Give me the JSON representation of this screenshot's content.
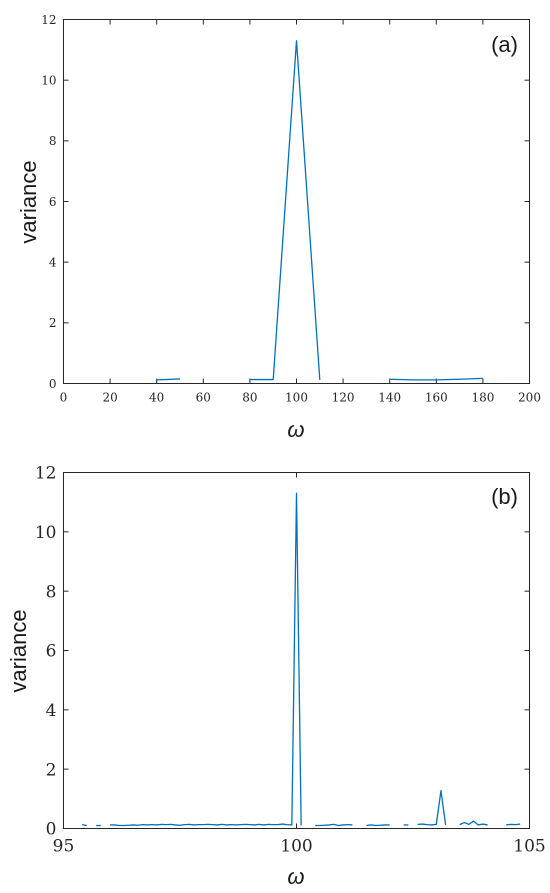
{
  "chart_data": [
    {
      "type": "line",
      "panel_label": "(a)",
      "xlabel": "ω",
      "ylabel": "variance",
      "xlim": [
        0,
        200
      ],
      "ylim": [
        0,
        12
      ],
      "xticks": [
        0,
        20,
        40,
        60,
        80,
        100,
        120,
        140,
        160,
        180,
        200
      ],
      "yticks": [
        0,
        2,
        4,
        6,
        8,
        10,
        12
      ],
      "grid": false,
      "color": "#0072bd",
      "segments": [
        {
          "x": [
            40,
            50
          ],
          "y": [
            0.12,
            0.15
          ]
        },
        {
          "x": [
            80,
            90,
            100,
            110
          ],
          "y": [
            0.13,
            0.13,
            11.3,
            0.12
          ]
        },
        {
          "x": [
            140,
            150,
            160,
            170,
            180
          ],
          "y": [
            0.14,
            0.12,
            0.12,
            0.14,
            0.17
          ]
        }
      ]
    },
    {
      "type": "line",
      "panel_label": "(b)",
      "xlabel": "ω",
      "ylabel": "variance",
      "xlim": [
        95,
        105
      ],
      "ylim": [
        0,
        12
      ],
      "xticks": [
        95,
        100,
        105
      ],
      "yticks": [
        0,
        2,
        4,
        6,
        8,
        10,
        12
      ],
      "grid": false,
      "color": "#0072bd",
      "segments": [
        {
          "x": [
            95.4,
            95.5
          ],
          "y": [
            0.13,
            0.1
          ]
        },
        {
          "x": [
            95.7,
            95.8
          ],
          "y": [
            0.1,
            0.1
          ]
        },
        {
          "x": [
            96.0,
            96.1,
            96.2,
            96.3,
            96.4,
            96.5,
            96.6,
            96.7,
            96.8,
            96.9,
            97.0,
            97.1,
            97.2,
            97.3,
            97.4,
            97.5,
            97.6,
            97.7,
            97.8,
            97.9,
            98.0,
            98.1,
            98.2,
            98.3,
            98.4,
            98.5,
            98.6,
            98.7,
            98.8,
            98.9,
            99.0,
            99.1,
            99.2,
            99.3,
            99.4,
            99.5,
            99.6,
            99.7,
            99.8,
            99.9,
            100.0,
            100.1
          ],
          "y": [
            0.12,
            0.12,
            0.1,
            0.1,
            0.11,
            0.12,
            0.11,
            0.13,
            0.12,
            0.13,
            0.12,
            0.14,
            0.13,
            0.14,
            0.12,
            0.11,
            0.13,
            0.14,
            0.12,
            0.13,
            0.13,
            0.14,
            0.13,
            0.12,
            0.14,
            0.12,
            0.13,
            0.12,
            0.13,
            0.14,
            0.13,
            0.12,
            0.14,
            0.12,
            0.14,
            0.13,
            0.13,
            0.15,
            0.13,
            0.12,
            11.3,
            0.1
          ]
        },
        {
          "x": [
            100.4,
            100.5,
            100.6,
            100.7,
            100.8,
            100.9,
            101.0,
            101.1,
            101.2
          ],
          "y": [
            0.1,
            0.1,
            0.11,
            0.12,
            0.14,
            0.1,
            0.12,
            0.13,
            0.12
          ]
        },
        {
          "x": [
            101.5,
            101.6,
            101.7,
            101.8,
            101.9,
            102.0
          ],
          "y": [
            0.1,
            0.12,
            0.1,
            0.11,
            0.12,
            0.12
          ]
        },
        {
          "x": [
            102.3,
            102.4
          ],
          "y": [
            0.12,
            0.12
          ]
        },
        {
          "x": [
            102.6,
            102.7,
            102.8,
            102.9,
            103.0,
            103.1,
            103.2
          ],
          "y": [
            0.14,
            0.15,
            0.13,
            0.12,
            0.14,
            1.28,
            0.12
          ]
        },
        {
          "x": [
            103.5,
            103.6,
            103.7,
            103.8,
            103.9,
            104.0,
            104.1
          ],
          "y": [
            0.13,
            0.2,
            0.14,
            0.25,
            0.12,
            0.15,
            0.12
          ]
        },
        {
          "x": [
            104.5,
            104.6,
            104.7,
            104.8
          ],
          "y": [
            0.12,
            0.14,
            0.13,
            0.15
          ]
        }
      ]
    }
  ]
}
